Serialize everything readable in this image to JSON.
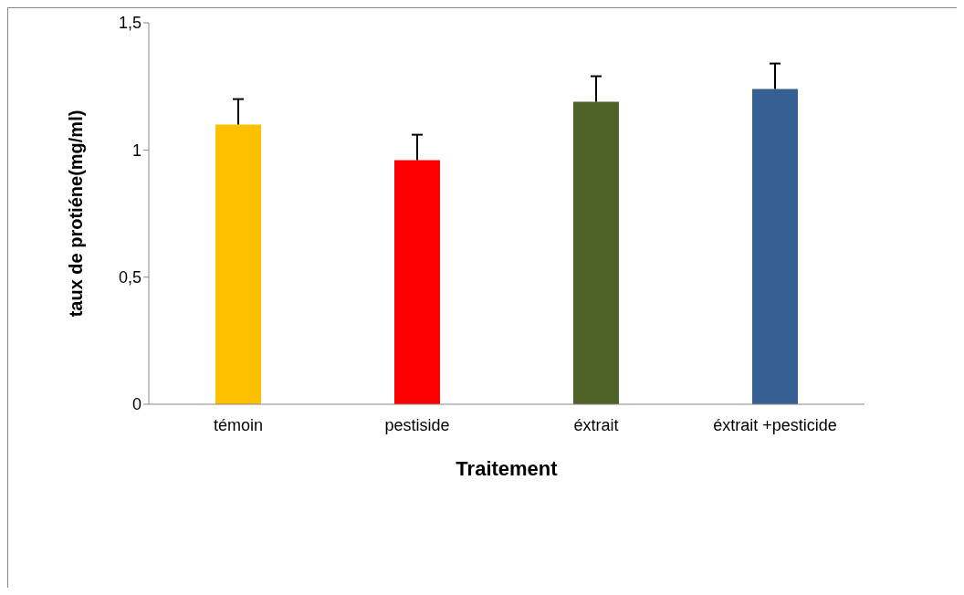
{
  "chart_data": {
    "type": "bar",
    "xlabel": "Traitement",
    "ylabel": "taux de protiéne(mg/ml)",
    "categories": [
      "témoin",
      "pestiside",
      "éxtrait",
      "éxtrait +pesticide"
    ],
    "values": [
      1.1,
      0.96,
      1.19,
      1.24
    ],
    "colors": [
      "#ffc000",
      "#ff0000",
      "#4f6228",
      "#366092"
    ],
    "errors": [
      [
        1.1,
        1.2
      ],
      [
        0.96,
        1.06
      ],
      [
        1.19,
        1.29
      ],
      [
        1.24,
        1.34
      ]
    ],
    "ylim": [
      0,
      1.5
    ],
    "yticks": [
      0,
      {
        "value": 0.5,
        "label": "0,5"
      },
      1,
      {
        "value": 1.5,
        "label": "1,5"
      }
    ],
    "grid": false,
    "legend": false
  }
}
